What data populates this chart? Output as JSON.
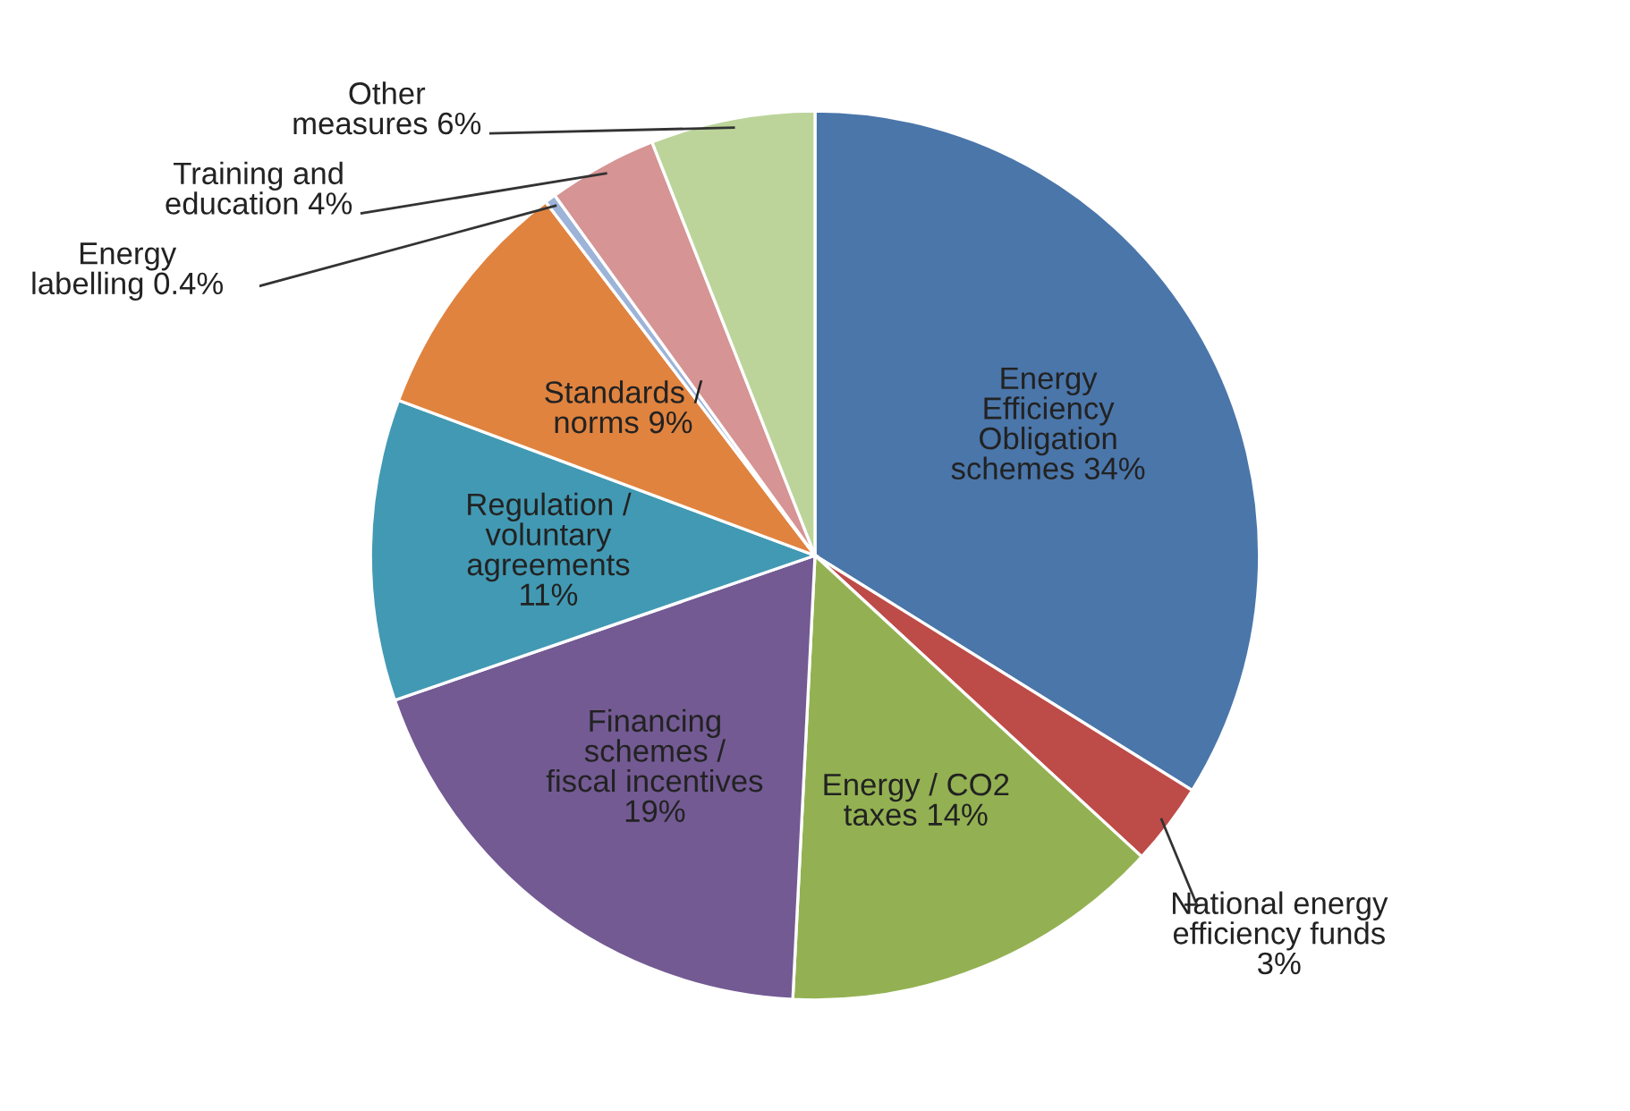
{
  "chart_data": {
    "type": "pie",
    "categories": [
      "Energy\nEfficiency\nObligation\nschemes",
      "National energy\nefficiency funds",
      "Energy / CO2\ntaxes",
      "Financing\nschemes /\nfiscal incentives",
      "Regulation /\nvoluntary\nagreements",
      "Standards /\nnorms",
      "Energy\nlabelling",
      "Training and\neducation",
      "Other\nmeasures"
    ],
    "values": [
      34,
      3,
      14,
      19,
      11,
      9,
      0.4,
      4,
      6
    ],
    "value_labels": [
      "34%",
      "3%",
      "14%",
      "19%",
      "11%",
      "9%",
      "0.4%",
      "4%",
      "6%"
    ],
    "colors": [
      "#4a76aa",
      "#bd4b48",
      "#93b152",
      "#735a93",
      "#4299b3",
      "#e0833f",
      "#9db4d8",
      "#d69494",
      "#bcd49a"
    ]
  }
}
